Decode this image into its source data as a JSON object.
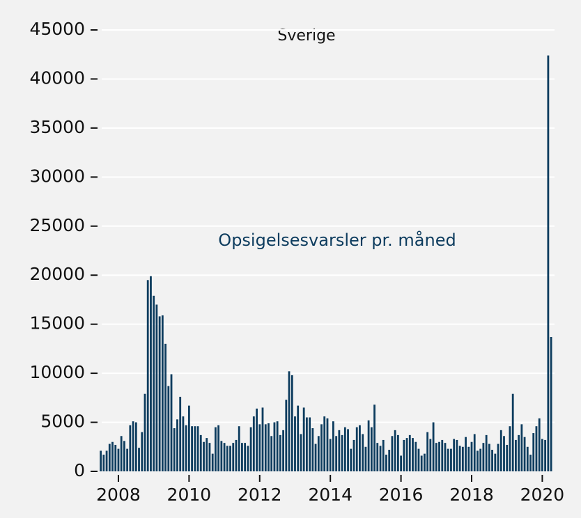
{
  "chart_data": {
    "type": "bar",
    "title": "Sverige",
    "annotation": "Opsigelsesvarsler pr. måned",
    "color": "#0d3c5e",
    "grid": true,
    "xlim": [
      2007.2,
      2020.4
    ],
    "xticks": [
      2008,
      2010,
      2012,
      2014,
      2016,
      2018,
      2020
    ],
    "ylim": [
      0,
      45000
    ],
    "yticks": [
      0,
      5000,
      10000,
      15000,
      20000,
      25000,
      30000,
      35000,
      40000,
      45000
    ],
    "x": [
      2007.5,
      2007.583,
      2007.667,
      2007.75,
      2007.833,
      2007.917,
      2008,
      2008.083,
      2008.167,
      2008.25,
      2008.333,
      2008.417,
      2008.5,
      2008.583,
      2008.667,
      2008.75,
      2008.833,
      2008.917,
      2009,
      2009.083,
      2009.167,
      2009.25,
      2009.333,
      2009.417,
      2009.5,
      2009.583,
      2009.667,
      2009.75,
      2009.833,
      2009.917,
      2010,
      2010.083,
      2010.167,
      2010.25,
      2010.333,
      2010.417,
      2010.5,
      2010.583,
      2010.667,
      2010.75,
      2010.833,
      2010.917,
      2011,
      2011.083,
      2011.167,
      2011.25,
      2011.333,
      2011.417,
      2011.5,
      2011.583,
      2011.667,
      2011.75,
      2011.833,
      2011.917,
      2012,
      2012.083,
      2012.167,
      2012.25,
      2012.333,
      2012.417,
      2012.5,
      2012.583,
      2012.667,
      2012.75,
      2012.833,
      2012.917,
      2013,
      2013.083,
      2013.167,
      2013.25,
      2013.333,
      2013.417,
      2013.5,
      2013.583,
      2013.667,
      2013.75,
      2013.833,
      2013.917,
      2014,
      2014.083,
      2014.167,
      2014.25,
      2014.333,
      2014.417,
      2014.5,
      2014.583,
      2014.667,
      2014.75,
      2014.833,
      2014.917,
      2015,
      2015.083,
      2015.167,
      2015.25,
      2015.333,
      2015.417,
      2015.5,
      2015.583,
      2015.667,
      2015.75,
      2015.833,
      2015.917,
      2016,
      2016.083,
      2016.167,
      2016.25,
      2016.333,
      2016.417,
      2016.5,
      2016.583,
      2016.667,
      2016.75,
      2016.833,
      2016.917,
      2017,
      2017.083,
      2017.167,
      2017.25,
      2017.333,
      2017.417,
      2017.5,
      2017.583,
      2017.667,
      2017.75,
      2017.833,
      2017.917,
      2018,
      2018.083,
      2018.167,
      2018.25,
      2018.333,
      2018.417,
      2018.5,
      2018.583,
      2018.667,
      2018.75,
      2018.833,
      2018.917,
      2019,
      2019.083,
      2019.167,
      2019.25,
      2019.333,
      2019.417,
      2019.5,
      2019.583,
      2019.667,
      2019.75,
      2019.833,
      2019.917,
      2020,
      2020.083,
      2020.167,
      2020.25
    ],
    "values": [
      2100,
      1700,
      2100,
      2800,
      3000,
      2700,
      2300,
      3600,
      3100,
      2300,
      4700,
      5100,
      5000,
      2400,
      4000,
      7900,
      19500,
      19900,
      17900,
      17000,
      15800,
      15900,
      13000,
      8700,
      9900,
      4400,
      5300,
      7600,
      5600,
      4700,
      6700,
      4600,
      4600,
      4600,
      3700,
      3000,
      3400,
      2900,
      1800,
      4500,
      4700,
      3100,
      2900,
      2600,
      2600,
      2900,
      3200,
      4600,
      2900,
      2900,
      2600,
      4500,
      5600,
      6400,
      4800,
      6500,
      4800,
      4900,
      3600,
      5000,
      5100,
      3700,
      4200,
      7300,
      10200,
      9800,
      5600,
      6700,
      3800,
      6500,
      5500,
      5500,
      4400,
      2800,
      3600,
      4800,
      5600,
      5400,
      3300,
      5100,
      3600,
      4200,
      3700,
      4500,
      4300,
      2300,
      3200,
      4500,
      4700,
      3800,
      2500,
      5200,
      4500,
      6800,
      2900,
      2600,
      3200,
      1700,
      2200,
      3600,
      4200,
      3700,
      1600,
      3200,
      3400,
      3700,
      3400,
      3000,
      2300,
      1600,
      1800,
      4000,
      3300,
      5000,
      2900,
      3000,
      3200,
      2900,
      2300,
      2300,
      3300,
      3200,
      2600,
      2500,
      3500,
      2500,
      3000,
      3800,
      2100,
      2300,
      2900,
      3700,
      2800,
      2200,
      1800,
      2800,
      4200,
      3600,
      2700,
      4600,
      7900,
      3200,
      3700,
      4800,
      3500,
      2500,
      1700,
      3900,
      4600,
      5400,
      3300,
      3200,
      42400,
      13700
    ]
  }
}
